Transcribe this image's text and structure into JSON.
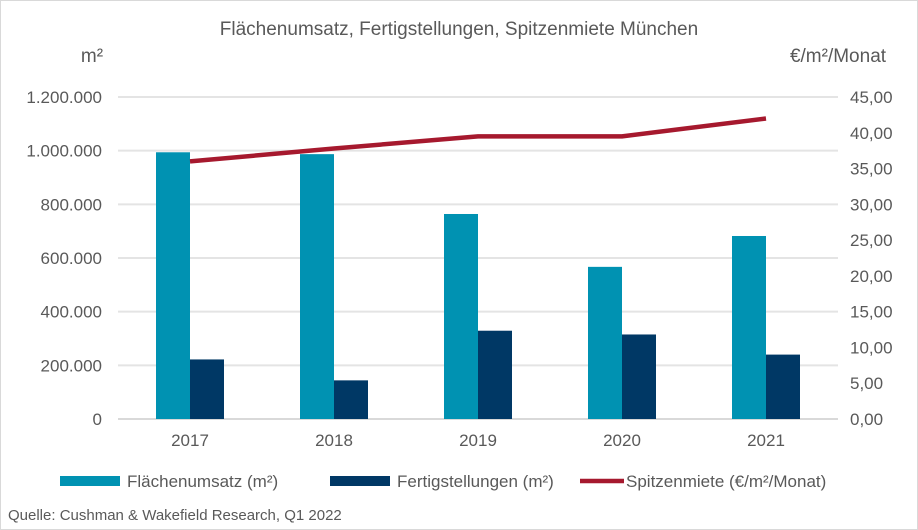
{
  "chart_data": {
    "type": "bar+line",
    "title": "Flächenumsatz, Fertigstellungen, Spitzenmiete München",
    "ylabel_left": "m²",
    "ylabel_right": "€/m²/Monat",
    "categories": [
      "2017",
      "2018",
      "2019",
      "2020",
      "2021"
    ],
    "ylim_left": [
      0,
      1200000
    ],
    "ylim_right": [
      0,
      45
    ],
    "yticks_left": [
      "0",
      "200.000",
      "400.000",
      "600.000",
      "800.000",
      "1.000.000",
      "1.200.000"
    ],
    "yticks_right": [
      "0,00",
      "5,00",
      "10,00",
      "15,00",
      "20,00",
      "25,00",
      "30,00",
      "35,00",
      "40,00",
      "45,00"
    ],
    "grid": true,
    "legend_position": "bottom",
    "series": [
      {
        "name": "Flächenumsatz (m²)",
        "type": "bar",
        "axis": "left",
        "color": "#0092b2",
        "values": [
          994000,
          987000,
          764000,
          567000,
          682000
        ]
      },
      {
        "name": "Fertigstellungen (m²)",
        "type": "bar",
        "axis": "left",
        "color": "#003865",
        "values": [
          222000,
          144000,
          329000,
          315000,
          240000
        ]
      },
      {
        "name": "Spitzenmiete (€/m²/Monat)",
        "type": "line",
        "axis": "right",
        "color": "#a6192e",
        "values": [
          36.0,
          37.8,
          39.5,
          39.5,
          42.0
        ]
      }
    ]
  },
  "source": "Quelle: Cushman & Wakefield Research, Q1 2022"
}
